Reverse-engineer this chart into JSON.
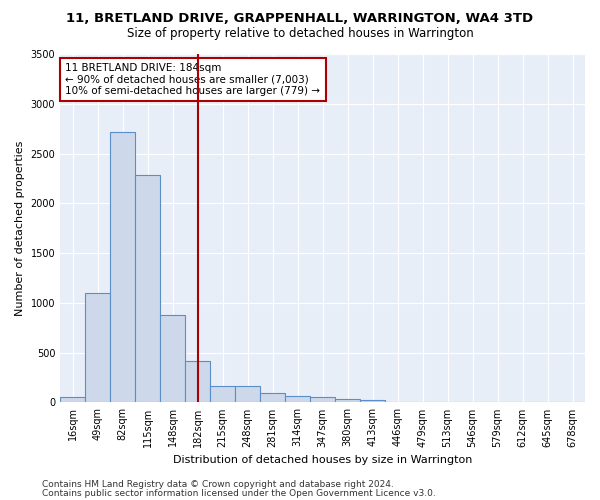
{
  "title": "11, BRETLAND DRIVE, GRAPPENHALL, WARRINGTON, WA4 3TD",
  "subtitle": "Size of property relative to detached houses in Warrington",
  "xlabel": "Distribution of detached houses by size in Warrington",
  "ylabel": "Number of detached properties",
  "bar_color": "#cdd9ea",
  "bar_edge_color": "#5b8dc8",
  "background_color": "#e8eef8",
  "grid_color": "#ffffff",
  "categories": [
    "16sqm",
    "49sqm",
    "82sqm",
    "115sqm",
    "148sqm",
    "182sqm",
    "215sqm",
    "248sqm",
    "281sqm",
    "314sqm",
    "347sqm",
    "380sqm",
    "413sqm",
    "446sqm",
    "479sqm",
    "513sqm",
    "546sqm",
    "579sqm",
    "612sqm",
    "645sqm",
    "678sqm"
  ],
  "values": [
    50,
    1100,
    2720,
    2280,
    880,
    420,
    170,
    165,
    90,
    60,
    55,
    30,
    28,
    5,
    5,
    0,
    0,
    0,
    0,
    0,
    0
  ],
  "vline_x": 5.0,
  "vline_color": "#aa0000",
  "annotation_text": "11 BRETLAND DRIVE: 184sqm\n← 90% of detached houses are smaller (7,003)\n10% of semi-detached houses are larger (779) →",
  "ylim": [
    0,
    3500
  ],
  "yticks": [
    0,
    500,
    1000,
    1500,
    2000,
    2500,
    3000,
    3500
  ],
  "footer1": "Contains HM Land Registry data © Crown copyright and database right 2024.",
  "footer2": "Contains public sector information licensed under the Open Government Licence v3.0.",
  "title_fontsize": 9.5,
  "subtitle_fontsize": 8.5,
  "xlabel_fontsize": 8,
  "ylabel_fontsize": 8,
  "tick_fontsize": 7,
  "annotation_fontsize": 7.5,
  "footer_fontsize": 6.5
}
